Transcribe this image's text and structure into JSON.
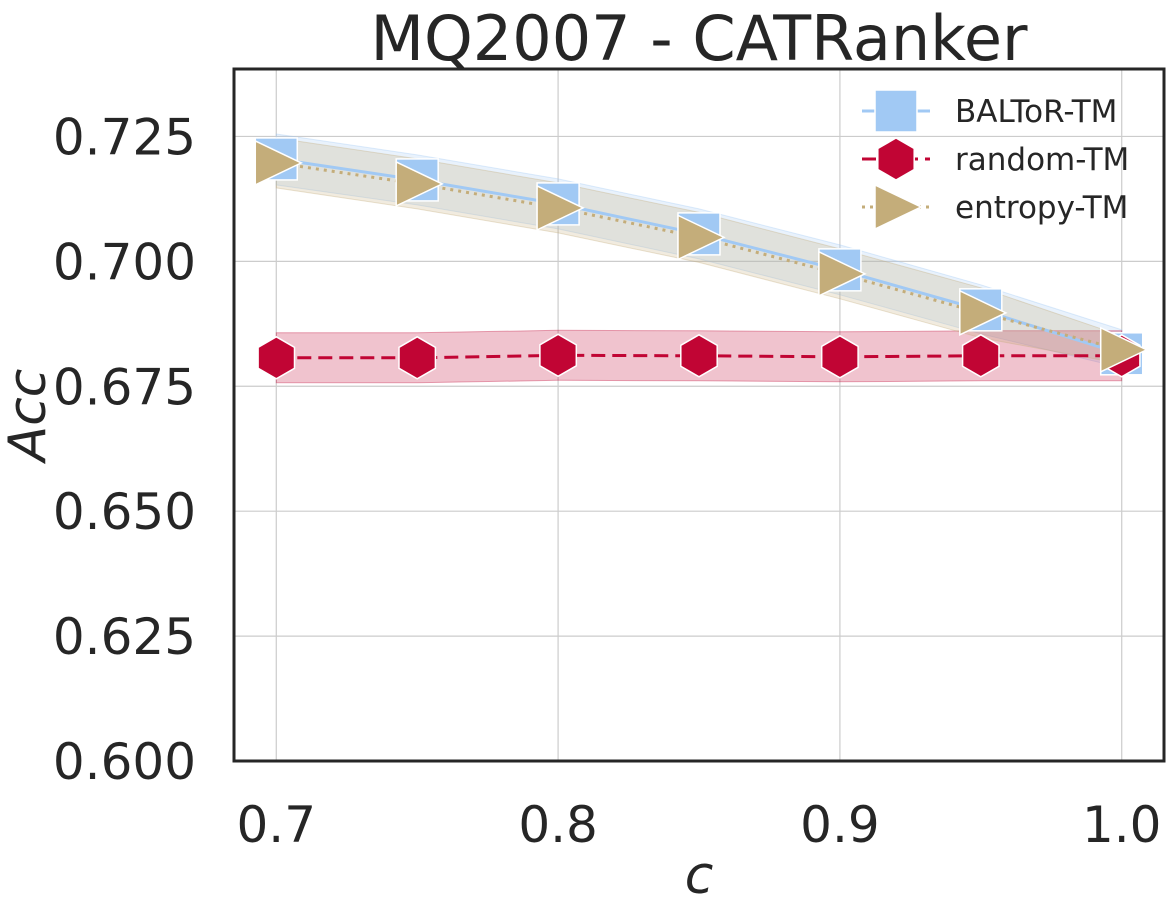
{
  "chart_data": {
    "type": "line",
    "title": "MQ2007 - CATRanker",
    "xlabel": "c",
    "ylabel": "Acc",
    "xlim": [
      0.685,
      1.015
    ],
    "ylim": [
      0.6,
      0.7385
    ],
    "x_ticks": [
      0.7,
      0.8,
      0.9,
      1.0
    ],
    "x_tick_labels": [
      "0.7",
      "0.8",
      "0.9",
      "1.0"
    ],
    "y_ticks": [
      0.6,
      0.625,
      0.65,
      0.675,
      0.7,
      0.725
    ],
    "y_tick_labels": [
      "0.600",
      "0.625",
      "0.650",
      "0.675",
      "0.700",
      "0.725"
    ],
    "grid": true,
    "legend_position": "top-right",
    "x": [
      0.7,
      0.75,
      0.8,
      0.85,
      0.9,
      0.95,
      1.0
    ],
    "series": [
      {
        "name": "BALToR-TM",
        "color": "#a1c9f4",
        "line_style": "solid",
        "marker": "square",
        "values": [
          0.7205,
          0.7163,
          0.7115,
          0.7055,
          0.6983,
          0.6903,
          0.6815
        ],
        "band_lower": [
          0.7153,
          0.7113,
          0.7065,
          0.7005,
          0.6933,
          0.6855,
          0.6787
        ],
        "band_upper": [
          0.7255,
          0.7213,
          0.7165,
          0.7105,
          0.7033,
          0.6953,
          0.6863
        ]
      },
      {
        "name": "random-TM",
        "color": "#c10534",
        "line_style": "dashed",
        "marker": "hexagon",
        "values": [
          0.6807,
          0.6807,
          0.6812,
          0.6811,
          0.6809,
          0.6811,
          0.6811
        ],
        "band_lower": [
          0.6757,
          0.6757,
          0.6762,
          0.6761,
          0.6759,
          0.6761,
          0.6761
        ],
        "band_upper": [
          0.6857,
          0.6857,
          0.6862,
          0.6861,
          0.6859,
          0.6861,
          0.6861
        ]
      },
      {
        "name": "entropy-TM",
        "color": "#c4ad7a",
        "line_style": "dotted",
        "marker": "triangle-right",
        "values": [
          0.7197,
          0.7155,
          0.7107,
          0.7048,
          0.6975,
          0.6897,
          0.6823
        ],
        "band_lower": [
          0.7147,
          0.7105,
          0.7057,
          0.6998,
          0.6925,
          0.6847,
          0.6795
        ],
        "band_upper": [
          0.7247,
          0.7205,
          0.7157,
          0.7098,
          0.7025,
          0.6947,
          0.6851
        ]
      }
    ]
  }
}
